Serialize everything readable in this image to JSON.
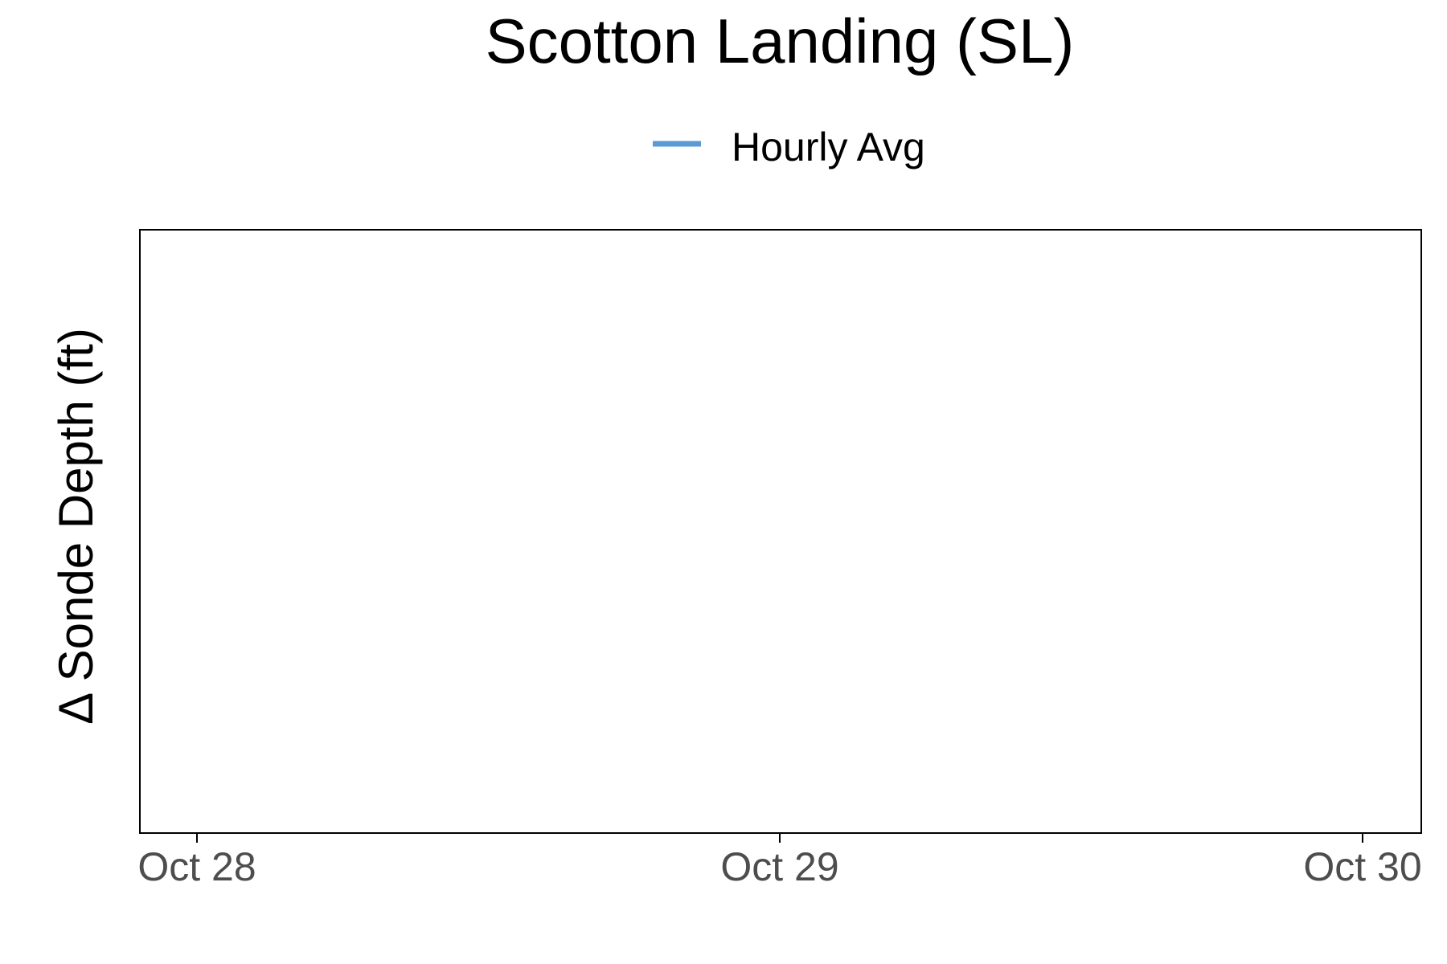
{
  "chart_data": {
    "type": "line",
    "title": "Scotton Landing (SL)",
    "ylabel": "Δ Sonde Depth (ft)",
    "xlabel": "",
    "x_ticks": [
      "Oct 28",
      "Oct 29",
      "Oct 30"
    ],
    "xlim": [
      "Oct 27 21:40",
      "Oct 30 02:20"
    ],
    "legend_position": "top",
    "grid": false,
    "series": [
      {
        "name": "Hourly Avg",
        "color": "#5B9BD5",
        "x": [],
        "y": []
      }
    ]
  }
}
